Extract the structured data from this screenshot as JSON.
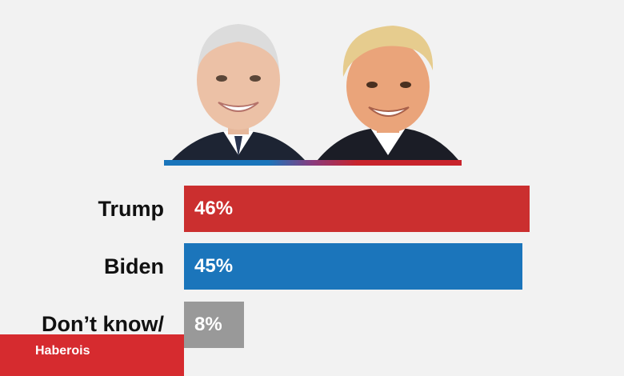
{
  "colors": {
    "trump": "#cb2f2f",
    "biden": "#1b75bb",
    "other": "#999999",
    "background": "#f2f2f2"
  },
  "portraits": [
    {
      "name": "biden-photo",
      "icon": "candidate-portrait"
    },
    {
      "name": "trump-photo",
      "icon": "candidate-portrait"
    }
  ],
  "chart_data": {
    "type": "bar",
    "orientation": "horizontal",
    "categories": [
      "Trump",
      "Biden",
      "Don’t know/\ndeclined to say"
    ],
    "values": [
      46,
      45,
      8
    ],
    "value_labels": [
      "46%",
      "45%",
      "8%"
    ],
    "colors": [
      "#cb2f2f",
      "#1b75bb",
      "#999999"
    ],
    "xlim": [
      0,
      46
    ],
    "grid": false,
    "legend": "none"
  },
  "watermark": {
    "text": "Haberois"
  }
}
